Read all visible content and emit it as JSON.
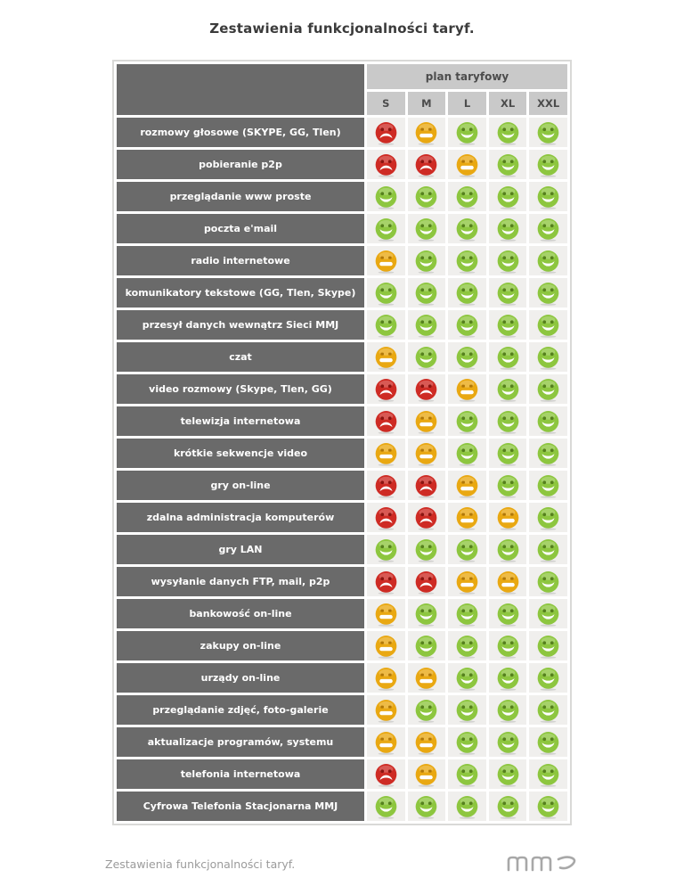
{
  "page": {
    "title": "Zestawienia funkcjonalności taryf.",
    "footer_text": "Zestawienia funkcjonalności taryf.",
    "logo": "mmj"
  },
  "table": {
    "header_group": "plan taryfowy",
    "columns": [
      "S",
      "M",
      "L",
      "XL",
      "XXL"
    ],
    "legend": {
      "good": {
        "color": "#8dc63f",
        "eye_color": "#55801d",
        "icon": "smiley-happy-icon"
      },
      "medium": {
        "color": "#e9a812",
        "eye_color": "#b07708",
        "icon": "smiley-neutral-icon"
      },
      "bad": {
        "color": "#ce2b24",
        "eye_color": "#8a1511",
        "icon": "smiley-sad-icon"
      }
    },
    "label_bg": "#6a6a6a",
    "header_bg": "#c9c9c9",
    "cell_bg": "#f0efed",
    "rows": [
      {
        "label": "rozmowy głosowe (SKYPE, GG, Tlen)",
        "ratings": [
          "bad",
          "medium",
          "good",
          "good",
          "good"
        ]
      },
      {
        "label": "pobieranie p2p",
        "ratings": [
          "bad",
          "bad",
          "medium",
          "good",
          "good"
        ]
      },
      {
        "label": "przeglądanie www proste",
        "ratings": [
          "good",
          "good",
          "good",
          "good",
          "good"
        ]
      },
      {
        "label": "poczta e'mail",
        "ratings": [
          "good",
          "good",
          "good",
          "good",
          "good"
        ]
      },
      {
        "label": "radio internetowe",
        "ratings": [
          "medium",
          "good",
          "good",
          "good",
          "good"
        ]
      },
      {
        "label": "komunikatory tekstowe (GG, Tlen, Skype)",
        "ratings": [
          "good",
          "good",
          "good",
          "good",
          "good"
        ]
      },
      {
        "label": "przesył danych wewnątrz Sieci MMJ",
        "ratings": [
          "good",
          "good",
          "good",
          "good",
          "good"
        ]
      },
      {
        "label": "czat",
        "ratings": [
          "medium",
          "good",
          "good",
          "good",
          "good"
        ]
      },
      {
        "label": "video rozmowy (Skype, Tlen, GG)",
        "ratings": [
          "bad",
          "bad",
          "medium",
          "good",
          "good"
        ]
      },
      {
        "label": "telewizja internetowa",
        "ratings": [
          "bad",
          "medium",
          "good",
          "good",
          "good"
        ]
      },
      {
        "label": "krótkie sekwencje video",
        "ratings": [
          "medium",
          "medium",
          "good",
          "good",
          "good"
        ]
      },
      {
        "label": "gry on-line",
        "ratings": [
          "bad",
          "bad",
          "medium",
          "good",
          "good"
        ]
      },
      {
        "label": "zdalna administracja komputerów",
        "ratings": [
          "bad",
          "bad",
          "medium",
          "medium",
          "good"
        ]
      },
      {
        "label": "gry LAN",
        "ratings": [
          "good",
          "good",
          "good",
          "good",
          "good"
        ]
      },
      {
        "label": "wysyłanie danych FTP, mail, p2p",
        "ratings": [
          "bad",
          "bad",
          "medium",
          "medium",
          "good"
        ]
      },
      {
        "label": "bankowość on-line",
        "ratings": [
          "medium",
          "good",
          "good",
          "good",
          "good"
        ]
      },
      {
        "label": "zakupy on-line",
        "ratings": [
          "medium",
          "good",
          "good",
          "good",
          "good"
        ]
      },
      {
        "label": "urządy on-line",
        "ratings": [
          "medium",
          "medium",
          "good",
          "good",
          "good"
        ]
      },
      {
        "label": "przeglądanie zdjęć, foto-galerie",
        "ratings": [
          "medium",
          "good",
          "good",
          "good",
          "good"
        ]
      },
      {
        "label": "aktualizacje programów, systemu",
        "ratings": [
          "medium",
          "medium",
          "good",
          "good",
          "good"
        ]
      },
      {
        "label": "telefonia internetowa",
        "ratings": [
          "bad",
          "medium",
          "good",
          "good",
          "good"
        ]
      },
      {
        "label": "Cyfrowa Telefonia Stacjonarna MMJ",
        "ratings": [
          "good",
          "good",
          "good",
          "good",
          "good"
        ]
      }
    ]
  }
}
